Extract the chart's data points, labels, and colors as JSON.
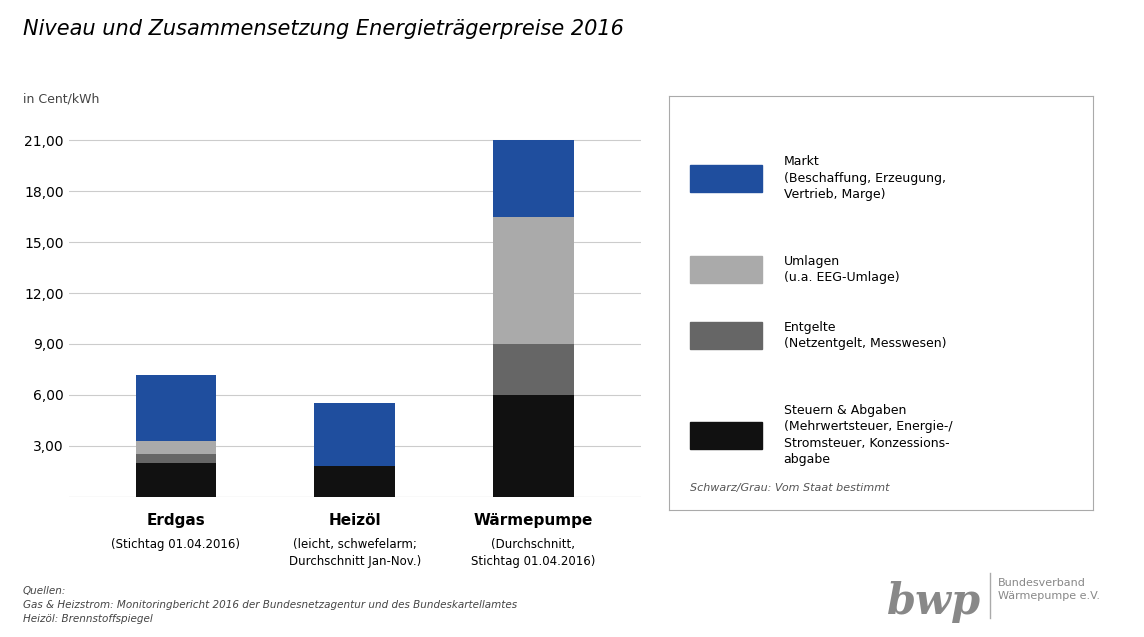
{
  "title": "Niveau und Zusammensetzung Energieträgerpreise 2016",
  "ylabel": "in Cent/kWh",
  "categories": [
    "Erdgas",
    "Heizöl",
    "Wärmepumpe"
  ],
  "cat_subtitles": [
    "(Stichtag 01.04.2016)",
    "(leicht, schwefelarm;\nDurchschnitt Jan-Nov.)",
    "(Durchschnitt,\nStichtag 01.04.2016)"
  ],
  "segments": {
    "Markt": {
      "values": [
        3.9,
        3.7,
        4.5
      ],
      "color": "#1f4e9e"
    },
    "Umlagen": {
      "values": [
        0.8,
        0.0,
        7.5
      ],
      "color": "#aaaaaa"
    },
    "Entgelte": {
      "values": [
        0.5,
        0.0,
        3.0
      ],
      "color": "#666666"
    },
    "Steuern": {
      "values": [
        2.0,
        1.8,
        6.0
      ],
      "color": "#111111"
    }
  },
  "segment_order": [
    "Steuern",
    "Entgelte",
    "Umlagen",
    "Markt"
  ],
  "ylim": [
    0,
    22.5
  ],
  "yticks": [
    3.0,
    6.0,
    9.0,
    12.0,
    15.0,
    18.0,
    21.0
  ],
  "ytick_labels": [
    "3,00",
    "6,00",
    "9,00",
    "12,00",
    "15,00",
    "18,00",
    "21,00"
  ],
  "bar_width": 0.45,
  "bg_color": "#ffffff",
  "legend_note": "Schwarz/Grau: Vom Staat bestimmt",
  "sources_text": "Quellen:\nGas & Heizstrom: Monitoringbericht 2016 der Bundesnetzagentur und des Bundeskartellamtes\nHeizöl: Brennstoffspiegel"
}
